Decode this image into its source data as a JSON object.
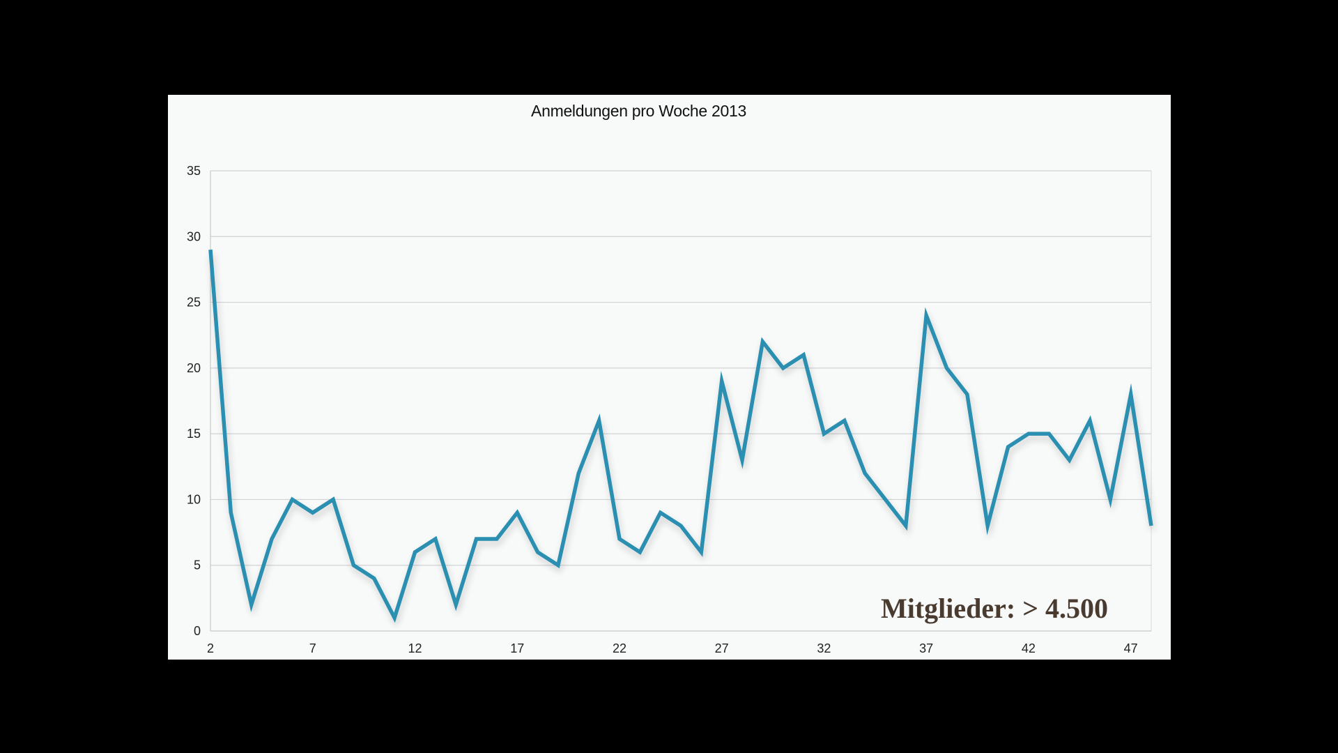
{
  "chart_data": {
    "type": "line",
    "title": "Anmeldungen pro Woche 2013",
    "xlabel": "",
    "ylabel": "",
    "x": [
      2,
      3,
      4,
      5,
      6,
      7,
      8,
      9,
      10,
      11,
      12,
      13,
      14,
      15,
      16,
      17,
      18,
      19,
      20,
      21,
      22,
      23,
      24,
      25,
      26,
      27,
      28,
      29,
      30,
      31,
      32,
      33,
      34,
      35,
      36,
      37,
      38,
      39,
      40,
      41,
      42,
      43,
      44,
      45,
      46,
      47,
      48
    ],
    "series": [
      {
        "values": [
          29,
          9,
          2,
          7,
          10,
          9,
          10,
          5,
          4,
          1,
          6,
          7,
          2,
          7,
          7,
          9,
          6,
          5,
          12,
          16,
          7,
          6,
          9,
          8,
          6,
          19,
          13,
          22,
          20,
          21,
          15,
          16,
          12,
          10,
          8,
          24,
          20,
          18,
          8,
          14,
          15,
          15,
          13,
          16,
          10,
          18,
          8
        ]
      }
    ],
    "xticks": [
      2,
      7,
      12,
      17,
      22,
      27,
      32,
      37,
      42,
      47
    ],
    "yticks": [
      0,
      5,
      10,
      15,
      20,
      25,
      30,
      35
    ],
    "xlim": [
      2,
      48
    ],
    "ylim": [
      0,
      35
    ],
    "grid": true,
    "line_color": "#2a8fb0",
    "annotation": "Mitglieder: > 4.500"
  }
}
